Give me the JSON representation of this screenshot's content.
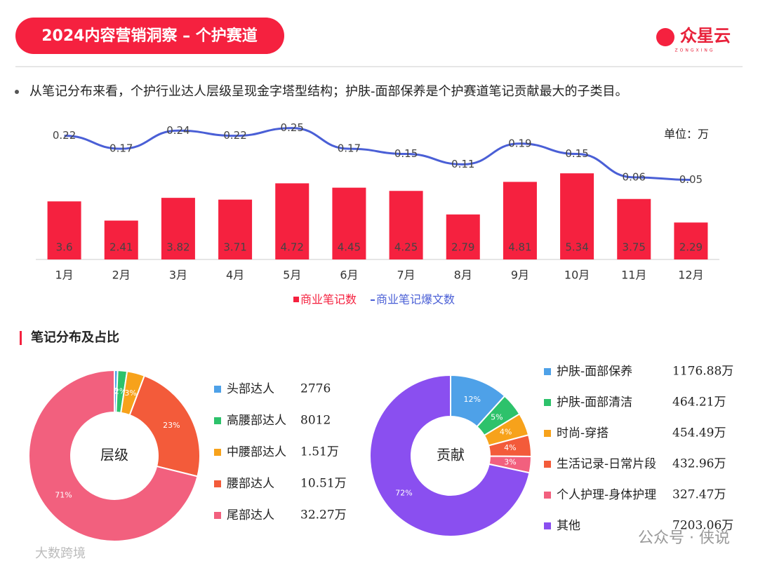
{
  "header": {
    "title": "2024内容营销洞察 – 个护赛道",
    "logo": "众星云",
    "logo_sub": "ZONGXING"
  },
  "bullet": "从笔记分布来看，个护行业达人层级呈现金字塔型结构；护肤-面部保养是个护赛道笔记贡献最大的子类目。",
  "section_title": "笔记分布及占比",
  "watermarks": [
    "大数跨境",
    "公众号 · 侠说"
  ],
  "chart_data": [
    {
      "type": "bar",
      "unit": "单位：万",
      "categories": [
        "1月",
        "2月",
        "3月",
        "4月",
        "5月",
        "6月",
        "7月",
        "8月",
        "9月",
        "10月",
        "11月",
        "12月"
      ],
      "series": [
        {
          "name": "商业笔记数",
          "color": "#f5213f",
          "values": [
            3.6,
            2.41,
            3.82,
            3.71,
            4.72,
            4.45,
            4.25,
            2.79,
            4.81,
            5.34,
            3.75,
            2.29
          ]
        },
        {
          "name": "商业笔记爆文数",
          "color": "#4a5fd6",
          "axis": "y2",
          "values": [
            0.22,
            0.17,
            0.24,
            0.22,
            0.25,
            0.17,
            0.15,
            0.11,
            0.19,
            0.15,
            0.06,
            0.05
          ]
        }
      ],
      "ylim": [
        0,
        8.26
      ],
      "y2lim": [
        -0.257,
        0.257
      ]
    },
    {
      "type": "donut",
      "center_label": "层级",
      "categories": [
        "头部达人",
        "高腰部达人",
        "中腰部达人",
        "腰部达人",
        "尾部达人"
      ],
      "values": [
        2776,
        8012,
        15100,
        105100,
        322700
      ],
      "value_labels": [
        "2776",
        "8012",
        "1.51万",
        "10.51万",
        "32.27万"
      ],
      "slice_labels": [
        "1%",
        "2%",
        "3%",
        "23%",
        "71%"
      ],
      "colors": [
        "#4ea1e8",
        "#2dc26b",
        "#f7a21b",
        "#f35b3a",
        "#f2607e"
      ]
    },
    {
      "type": "donut",
      "center_label": "贡献",
      "categories": [
        "护肤-面部保养",
        "护肤-面部清洁",
        "时尚-穿搭",
        "生活记录-日常片段",
        "个人护理-身体护理",
        "其他"
      ],
      "values": [
        1176.88,
        464.21,
        454.49,
        432.96,
        327.47,
        7203.06
      ],
      "value_labels": [
        "1176.88万",
        "464.21万",
        "454.49万",
        "432.96万",
        "327.47万",
        "7203.06万"
      ],
      "slice_labels": [
        "12%",
        "5%",
        "4%",
        "4%",
        "3%",
        "72%"
      ],
      "colors": [
        "#4ea1e8",
        "#2dc26b",
        "#f7a21b",
        "#f35b3a",
        "#f2607e",
        "#8a4ff0"
      ]
    }
  ]
}
